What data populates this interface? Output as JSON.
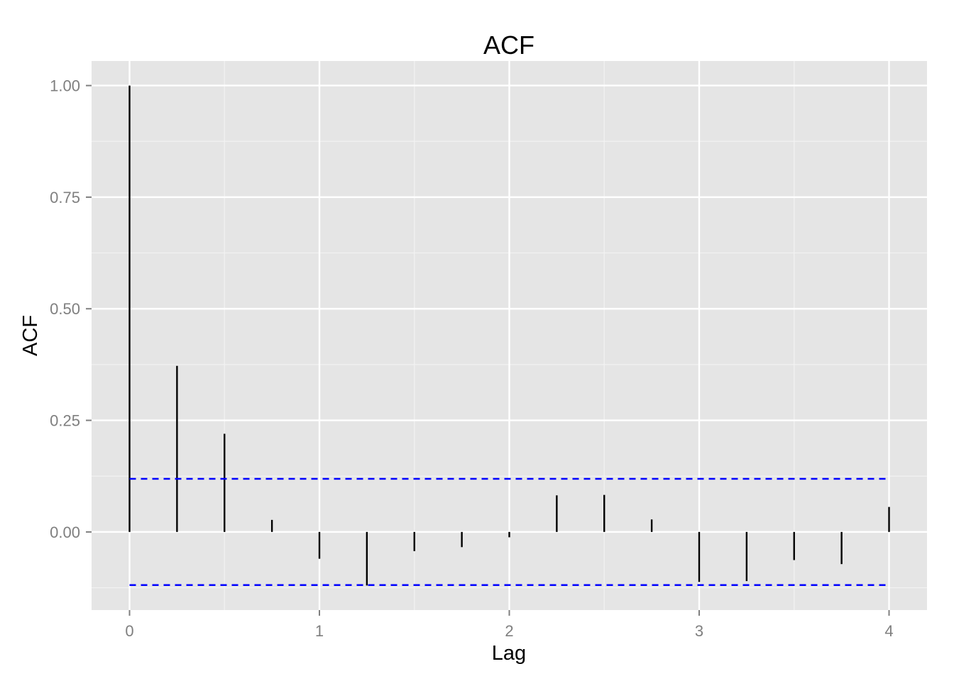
{
  "chart_data": {
    "type": "bar",
    "title": "ACF",
    "xlabel": "Lag",
    "ylabel": "ACF",
    "x": [
      0,
      0.25,
      0.5,
      0.75,
      1,
      1.25,
      1.5,
      1.75,
      2,
      2.25,
      2.5,
      2.75,
      3,
      3.25,
      3.5,
      3.75,
      4
    ],
    "values": [
      1.0,
      0.372,
      0.22,
      0.027,
      -0.06,
      -0.12,
      -0.043,
      -0.034,
      -0.012,
      0.082,
      0.083,
      0.028,
      -0.112,
      -0.11,
      -0.063,
      -0.072,
      0.056
    ],
    "confidence_bounds": [
      0.119,
      -0.119
    ],
    "xlim": [
      -0.2,
      4.2
    ],
    "ylim": [
      -0.175,
      1.055
    ],
    "x_ticks": [
      0,
      1,
      2,
      3,
      4
    ],
    "x_tick_labels": [
      "0",
      "1",
      "2",
      "3",
      "4"
    ],
    "y_ticks": [
      0,
      0.25,
      0.5,
      0.75,
      1
    ],
    "y_tick_labels": [
      "0.00",
      "0.25",
      "0.50",
      "0.75",
      "1.00"
    ],
    "grid": true,
    "colors": {
      "panel_background": "#e5e5e5",
      "grid_major": "#ffffff",
      "grid_minor": "#f2f2f2",
      "bars": "#000000",
      "confidence_lines": "#0000ff"
    }
  }
}
